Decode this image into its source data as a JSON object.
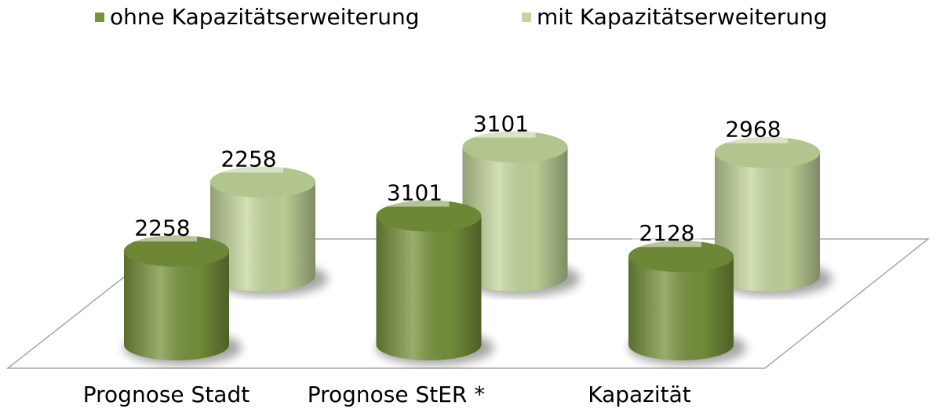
{
  "chart_data": {
    "type": "bar3d",
    "categories": [
      "Prognose Stadt",
      "Prognose StER *",
      "Kapazität"
    ],
    "series": [
      {
        "name": "ohne Kapazitätserweiterung",
        "color": "#77933c",
        "values": [
          2258,
          3101,
          2128
        ]
      },
      {
        "name": "mit Kapazitätserweiterung",
        "color": "#c3d69b",
        "values": [
          2258,
          3101,
          2968
        ]
      }
    ],
    "legend": "top"
  }
}
